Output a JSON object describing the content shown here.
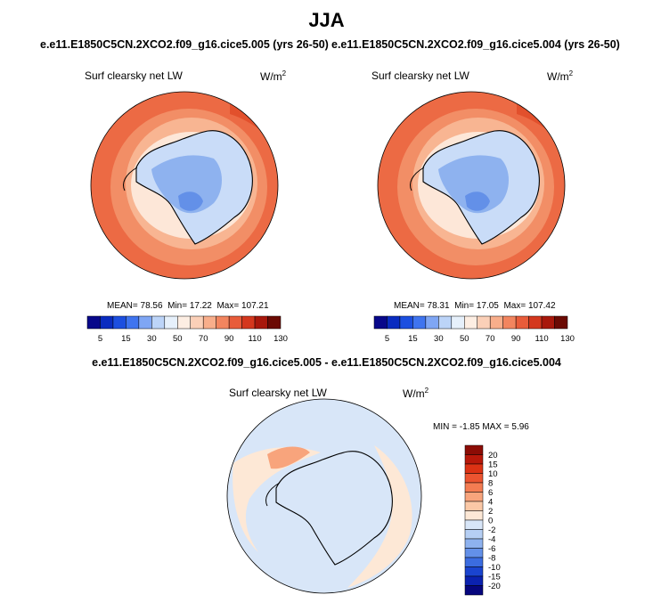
{
  "page_title": "JJA",
  "diff_title": "e.e11.E1850C5CN.2XCO2.f09_g16.cice5.005 - e.e11.E1850C5CN.2XCO2.f09_g16.cice5.004",
  "chart_data": [
    {
      "type": "heatmap",
      "projection": "south-polar-stereographic",
      "case": "e.e11.E1850C5CN.2XCO2.f09_g16.cice5.005 (yrs 26-50)",
      "field": "Surf clearsky net LW",
      "units": "W/m",
      "units_exp": "2",
      "stats": {
        "mean_label": "MEAN=",
        "mean": "78.56",
        "min_label": "Min=",
        "min": "17.22",
        "max_label": "Max=",
        "max": "107.21"
      },
      "colorbar": {
        "ticks": [
          "5",
          "15",
          "30",
          "50",
          "70",
          "90",
          "110",
          "130"
        ],
        "colors": [
          "#08088a",
          "#0a2cc0",
          "#1c4fe0",
          "#3f74ef",
          "#7fa6f4",
          "#bcd4f8",
          "#e6f0fb",
          "#fdeee3",
          "#fbd0b8",
          "#f8ae8b",
          "#f2855f",
          "#e85c3a",
          "#d4381e",
          "#a8180c",
          "#6b0a04"
        ]
      }
    },
    {
      "type": "heatmap",
      "projection": "south-polar-stereographic",
      "case": "e.e11.E1850C5CN.2XCO2.f09_g16.cice5.004 (yrs 26-50)",
      "field": "Surf clearsky net LW",
      "units": "W/m",
      "units_exp": "2",
      "stats": {
        "mean_label": "MEAN=",
        "mean": "78.31",
        "min_label": "Min=",
        "min": "17.05",
        "max_label": "Max=",
        "max": "107.42"
      },
      "colorbar": {
        "ticks": [
          "5",
          "15",
          "30",
          "50",
          "70",
          "90",
          "110",
          "130"
        ],
        "colors": [
          "#08088a",
          "#0a2cc0",
          "#1c4fe0",
          "#3f74ef",
          "#7fa6f4",
          "#bcd4f8",
          "#e6f0fb",
          "#fdeee3",
          "#fbd0b8",
          "#f8ae8b",
          "#f2855f",
          "#e85c3a",
          "#d4381e",
          "#a8180c",
          "#6b0a04"
        ]
      }
    },
    {
      "type": "heatmap",
      "projection": "south-polar-stereographic",
      "field": "Surf clearsky net LW",
      "units": "W/m",
      "units_exp": "2",
      "stats": {
        "min_label": "MIN =",
        "min": "-1.85",
        "max_label": "MAX =",
        "max": "5.96"
      },
      "colorbar": {
        "orientation": "vertical",
        "ticks": [
          "20",
          "15",
          "10",
          "8",
          "6",
          "4",
          "2",
          "0",
          "-2",
          "-4",
          "-6",
          "-8",
          "-10",
          "-15",
          "-20"
        ],
        "colors": [
          "#8c0c05",
          "#b8180a",
          "#dc3214",
          "#ec5430",
          "#f47c52",
          "#f8a47c",
          "#fbc8a6",
          "#fde8d6",
          "#d8e6f8",
          "#b6cff4",
          "#8eb2ef",
          "#6390e8",
          "#3b6ce0",
          "#1a44cf",
          "#0b22b0",
          "#06067e"
        ]
      }
    }
  ]
}
